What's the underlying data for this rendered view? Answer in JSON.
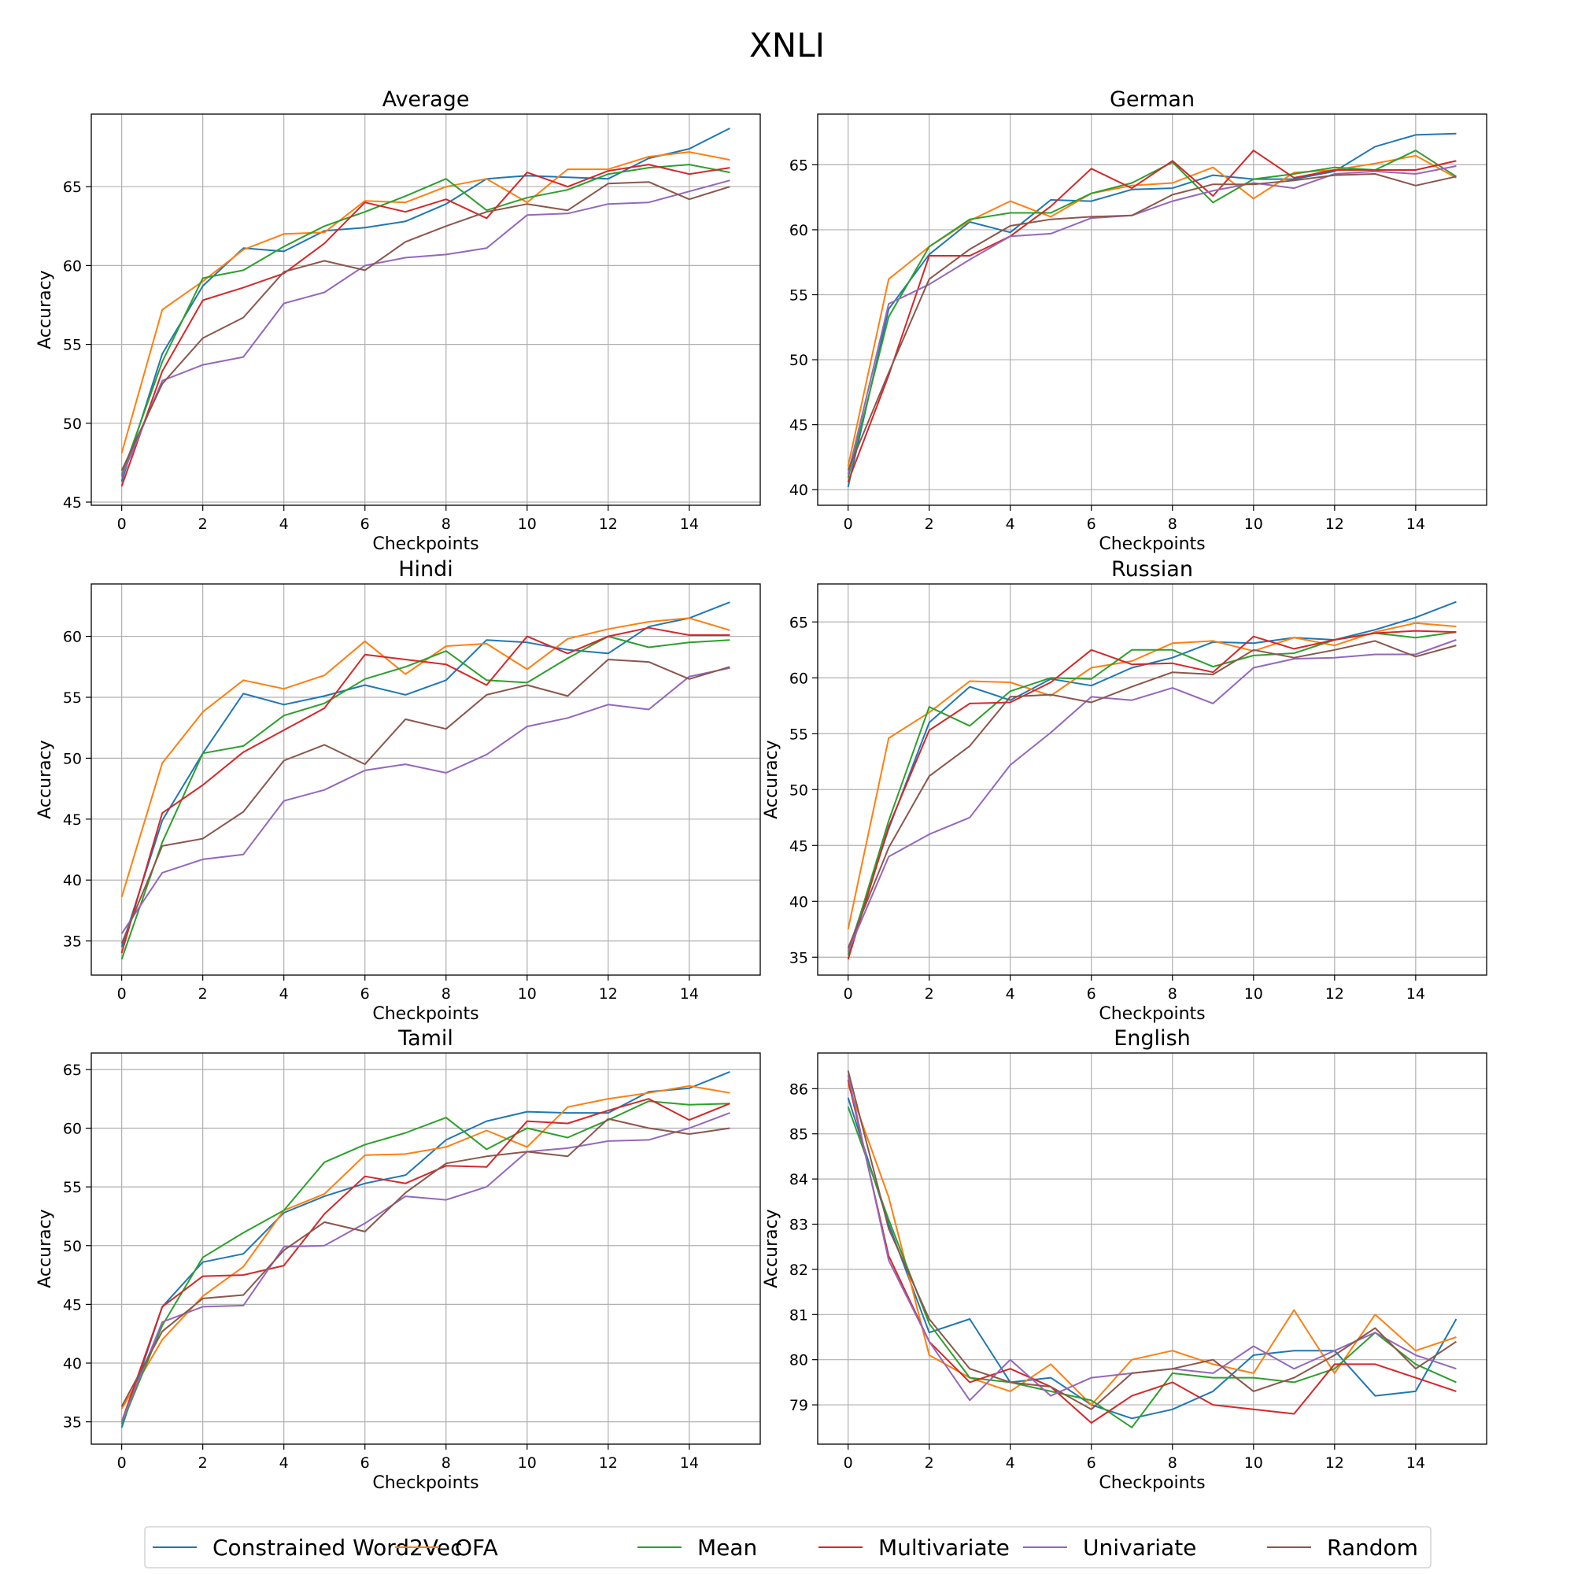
{
  "figure": {
    "title": "XNLI",
    "legend_position": "bottom-center"
  },
  "series_styles": [
    {
      "name": "Constrained Word2Vec",
      "color": "#1f77b4"
    },
    {
      "name": "OFA",
      "color": "#ff7f0e"
    },
    {
      "name": "Mean",
      "color": "#2ca02c"
    },
    {
      "name": "Multivariate",
      "color": "#d62728"
    },
    {
      "name": "Univariate",
      "color": "#9467bd"
    },
    {
      "name": "Random",
      "color": "#8c564b"
    }
  ],
  "chart_data": [
    {
      "type": "line",
      "title": "Average",
      "xlabel": "Checkpoints",
      "ylabel": "Accuracy",
      "xlim": [
        -0.75,
        15.75
      ],
      "ylim": [
        44.8,
        69.6
      ],
      "xticks": [
        0,
        2,
        4,
        6,
        8,
        10,
        12,
        14
      ],
      "yticks": [
        45,
        50,
        55,
        60,
        65
      ],
      "grid": true,
      "x": [
        0,
        1,
        2,
        3,
        4,
        5,
        6,
        7,
        8,
        9,
        10,
        11,
        12,
        13,
        14,
        15
      ],
      "series": [
        {
          "name": "Constrained Word2Vec",
          "values": [
            46.3,
            54.4,
            58.7,
            61.1,
            60.9,
            62.2,
            62.4,
            62.8,
            63.9,
            65.5,
            65.7,
            65.6,
            65.5,
            66.8,
            67.4,
            68.7
          ]
        },
        {
          "name": "OFA",
          "values": [
            48.1,
            57.2,
            59.0,
            61.0,
            62.0,
            62.1,
            64.1,
            64.0,
            65.0,
            65.5,
            64.0,
            66.1,
            66.1,
            66.9,
            67.2,
            66.7
          ]
        },
        {
          "name": "Mean",
          "values": [
            46.7,
            53.9,
            59.2,
            59.7,
            61.2,
            62.5,
            63.4,
            64.4,
            65.5,
            63.5,
            64.3,
            64.8,
            65.8,
            66.2,
            66.4,
            65.9
          ]
        },
        {
          "name": "Multivariate",
          "values": [
            46.0,
            53.3,
            57.8,
            58.6,
            59.5,
            61.4,
            64.0,
            63.4,
            64.2,
            63.0,
            65.9,
            65.0,
            66.0,
            66.4,
            65.8,
            66.2
          ]
        },
        {
          "name": "Univariate",
          "values": [
            46.6,
            52.7,
            53.7,
            54.2,
            57.6,
            58.3,
            60.0,
            60.5,
            60.7,
            61.1,
            63.2,
            63.3,
            63.9,
            64.0,
            64.7,
            65.4
          ]
        },
        {
          "name": "Random",
          "values": [
            47.0,
            52.5,
            55.4,
            56.7,
            59.6,
            60.3,
            59.7,
            61.5,
            62.5,
            63.4,
            63.9,
            63.5,
            65.2,
            65.3,
            64.2,
            65.0
          ]
        }
      ]
    },
    {
      "type": "line",
      "title": "German",
      "xlabel": "Checkpoints",
      "ylabel": "",
      "xlim": [
        -0.75,
        15.75
      ],
      "ylim": [
        38.8,
        68.9
      ],
      "xticks": [
        0,
        2,
        4,
        6,
        8,
        10,
        12,
        14
      ],
      "yticks": [
        40,
        45,
        50,
        55,
        60,
        65
      ],
      "grid": true,
      "x": [
        0,
        1,
        2,
        3,
        4,
        5,
        6,
        7,
        8,
        9,
        10,
        11,
        12,
        13,
        14,
        15
      ],
      "series": [
        {
          "name": "Constrained Word2Vec",
          "values": [
            40.2,
            53.9,
            58.1,
            60.6,
            59.8,
            62.3,
            62.2,
            63.1,
            63.2,
            64.2,
            63.9,
            63.9,
            64.5,
            66.4,
            67.3,
            67.4
          ]
        },
        {
          "name": "OFA",
          "values": [
            41.8,
            56.2,
            58.7,
            60.7,
            62.2,
            61.0,
            62.8,
            63.4,
            63.6,
            64.8,
            62.4,
            64.4,
            64.6,
            65.1,
            65.7,
            64.0
          ]
        },
        {
          "name": "Mean",
          "values": [
            40.9,
            53.3,
            58.7,
            60.8,
            61.3,
            61.3,
            62.8,
            63.6,
            65.2,
            62.1,
            63.9,
            64.3,
            64.8,
            64.6,
            66.1,
            64.1
          ]
        },
        {
          "name": "Multivariate",
          "values": [
            40.6,
            48.8,
            58.0,
            58.0,
            59.5,
            61.8,
            64.7,
            63.2,
            65.3,
            62.6,
            66.1,
            64.0,
            64.6,
            64.6,
            64.6,
            65.3
          ]
        },
        {
          "name": "Univariate",
          "values": [
            41.2,
            54.3,
            55.8,
            57.7,
            59.5,
            59.7,
            60.9,
            61.1,
            62.2,
            63.0,
            63.6,
            63.2,
            64.3,
            64.5,
            64.3,
            64.9
          ]
        },
        {
          "name": "Random",
          "values": [
            41.5,
            49.0,
            56.2,
            58.5,
            60.3,
            60.8,
            61.0,
            61.1,
            62.7,
            63.5,
            63.5,
            63.8,
            64.2,
            64.3,
            63.4,
            64.1
          ]
        }
      ]
    },
    {
      "type": "line",
      "title": "Hindi",
      "xlabel": "Checkpoints",
      "ylabel": "Accuracy",
      "xlim": [
        -0.75,
        15.75
      ],
      "ylim": [
        32.2,
        64.3
      ],
      "xticks": [
        0,
        2,
        4,
        6,
        8,
        10,
        12,
        14
      ],
      "yticks": [
        35,
        40,
        45,
        50,
        55,
        60
      ],
      "grid": true,
      "x": [
        0,
        1,
        2,
        3,
        4,
        5,
        6,
        7,
        8,
        9,
        10,
        11,
        12,
        13,
        14,
        15
      ],
      "series": [
        {
          "name": "Constrained Word2Vec",
          "values": [
            34.5,
            44.9,
            50.4,
            55.3,
            54.4,
            55.1,
            56.0,
            55.2,
            56.4,
            59.7,
            59.5,
            58.9,
            58.6,
            60.8,
            61.5,
            62.8
          ]
        },
        {
          "name": "OFA",
          "values": [
            38.6,
            49.6,
            53.8,
            56.4,
            55.7,
            56.8,
            59.6,
            56.9,
            59.2,
            59.4,
            57.3,
            59.8,
            60.6,
            61.2,
            61.5,
            60.5
          ]
        },
        {
          "name": "Mean",
          "values": [
            33.5,
            43.1,
            50.4,
            51.0,
            53.5,
            54.5,
            56.5,
            57.5,
            58.8,
            56.4,
            56.2,
            58.2,
            60.0,
            59.1,
            59.5,
            59.7
          ]
        },
        {
          "name": "Multivariate",
          "values": [
            34.0,
            45.5,
            47.8,
            50.5,
            52.3,
            54.1,
            58.5,
            58.1,
            57.7,
            56.0,
            60.0,
            58.6,
            60.0,
            60.7,
            60.1,
            60.1
          ]
        },
        {
          "name": "Univariate",
          "values": [
            35.6,
            40.6,
            41.7,
            42.1,
            46.5,
            47.4,
            49.0,
            49.5,
            48.8,
            50.3,
            52.6,
            53.3,
            54.4,
            54.0,
            56.7,
            57.4
          ]
        },
        {
          "name": "Random",
          "values": [
            34.8,
            42.8,
            43.4,
            45.6,
            49.8,
            51.1,
            49.5,
            53.2,
            52.4,
            55.2,
            56.0,
            55.1,
            58.1,
            57.9,
            56.5,
            57.5
          ]
        }
      ]
    },
    {
      "type": "line",
      "title": "Russian",
      "xlabel": "Checkpoints",
      "ylabel": "Accuracy",
      "xlim": [
        -0.75,
        15.75
      ],
      "ylim": [
        33.4,
        68.4
      ],
      "xticks": [
        0,
        2,
        4,
        6,
        8,
        10,
        12,
        14
      ],
      "yticks": [
        35,
        40,
        45,
        50,
        55,
        60,
        65
      ],
      "grid": true,
      "x": [
        0,
        1,
        2,
        3,
        4,
        5,
        6,
        7,
        8,
        9,
        10,
        11,
        12,
        13,
        14,
        15
      ],
      "series": [
        {
          "name": "Constrained Word2Vec",
          "values": [
            35.5,
            46.5,
            56.0,
            59.2,
            58.0,
            59.9,
            59.3,
            60.9,
            61.8,
            63.2,
            63.1,
            63.6,
            63.4,
            64.3,
            65.4,
            66.8
          ]
        },
        {
          "name": "OFA",
          "values": [
            37.5,
            54.6,
            56.9,
            59.7,
            59.6,
            58.4,
            60.9,
            61.5,
            63.1,
            63.3,
            62.4,
            63.6,
            62.9,
            64.1,
            64.9,
            64.6
          ]
        },
        {
          "name": "Mean",
          "values": [
            35.2,
            47.2,
            57.4,
            55.7,
            58.8,
            60.0,
            59.9,
            62.5,
            62.5,
            61.0,
            62.0,
            62.2,
            63.4,
            64.0,
            63.6,
            64.1
          ]
        },
        {
          "name": "Multivariate",
          "values": [
            34.8,
            46.7,
            55.3,
            57.7,
            57.8,
            59.6,
            62.5,
            61.2,
            61.3,
            60.5,
            63.7,
            62.6,
            63.4,
            64.0,
            64.2,
            64.1
          ]
        },
        {
          "name": "Univariate",
          "values": [
            35.5,
            44.0,
            46.0,
            47.5,
            52.2,
            55.1,
            58.3,
            58.0,
            59.1,
            57.7,
            60.9,
            61.7,
            61.8,
            62.1,
            62.1,
            63.4
          ]
        },
        {
          "name": "Random",
          "values": [
            35.8,
            44.8,
            51.2,
            53.9,
            58.3,
            58.5,
            57.8,
            59.2,
            60.5,
            60.3,
            62.5,
            61.8,
            62.5,
            63.3,
            61.9,
            62.9
          ]
        }
      ]
    },
    {
      "type": "line",
      "title": "Tamil",
      "xlabel": "Checkpoints",
      "ylabel": "Accuracy",
      "xlim": [
        -0.75,
        15.75
      ],
      "ylim": [
        33.1,
        66.4
      ],
      "xticks": [
        0,
        2,
        4,
        6,
        8,
        10,
        12,
        14
      ],
      "yticks": [
        35,
        40,
        45,
        50,
        55,
        60,
        65
      ],
      "grid": true,
      "x": [
        0,
        1,
        2,
        3,
        4,
        5,
        6,
        7,
        8,
        9,
        10,
        11,
        12,
        13,
        14,
        15
      ],
      "series": [
        {
          "name": "Constrained Word2Vec",
          "values": [
            34.5,
            44.8,
            48.6,
            49.3,
            52.8,
            54.2,
            55.3,
            56.0,
            59.0,
            60.6,
            61.4,
            61.3,
            61.3,
            63.1,
            63.4,
            64.8
          ]
        },
        {
          "name": "OFA",
          "values": [
            36.1,
            42.0,
            45.7,
            48.2,
            53.0,
            54.4,
            57.7,
            57.8,
            58.4,
            59.8,
            58.4,
            61.8,
            62.5,
            63.0,
            63.6,
            63.0
          ]
        },
        {
          "name": "Mean",
          "values": [
            34.8,
            43.2,
            49.0,
            51.1,
            53.0,
            57.1,
            58.6,
            59.6,
            60.9,
            58.2,
            60.0,
            59.2,
            60.7,
            62.3,
            62.0,
            62.1
          ]
        },
        {
          "name": "Multivariate",
          "values": [
            35.0,
            44.8,
            47.4,
            47.5,
            48.3,
            52.7,
            55.9,
            55.3,
            56.8,
            56.7,
            60.6,
            60.4,
            61.5,
            62.5,
            60.7,
            62.1
          ]
        },
        {
          "name": "Univariate",
          "values": [
            35.0,
            43.5,
            44.8,
            44.9,
            49.9,
            50.0,
            51.9,
            54.2,
            53.9,
            55.0,
            58.0,
            58.3,
            58.9,
            59.0,
            60.0,
            61.3
          ]
        },
        {
          "name": "Random",
          "values": [
            36.3,
            42.7,
            45.5,
            45.8,
            49.6,
            52.0,
            51.2,
            54.5,
            57.0,
            57.6,
            58.0,
            57.6,
            60.8,
            60.0,
            59.5,
            60.0
          ]
        }
      ]
    },
    {
      "type": "line",
      "title": "English",
      "xlabel": "Checkpoints",
      "ylabel": "Accuracy",
      "xlim": [
        -0.75,
        15.75
      ],
      "ylim": [
        78.13,
        86.79
      ],
      "xticks": [
        0,
        2,
        4,
        6,
        8,
        10,
        12,
        14
      ],
      "yticks": [
        79,
        80,
        81,
        82,
        83,
        84,
        85,
        86
      ],
      "grid": true,
      "x": [
        0,
        1,
        2,
        3,
        4,
        5,
        6,
        7,
        8,
        9,
        10,
        11,
        12,
        13,
        14,
        15
      ],
      "series": [
        {
          "name": "Constrained Word2Vec",
          "values": [
            85.8,
            83.0,
            80.6,
            80.9,
            79.5,
            79.6,
            79.0,
            78.7,
            78.9,
            79.3,
            80.1,
            80.2,
            80.2,
            79.2,
            79.3,
            80.9
          ]
        },
        {
          "name": "OFA",
          "values": [
            86.1,
            83.6,
            80.1,
            79.6,
            79.3,
            79.9,
            79.0,
            80.0,
            80.2,
            79.9,
            79.7,
            81.1,
            79.7,
            81.0,
            80.2,
            80.5
          ]
        },
        {
          "name": "Mean",
          "values": [
            85.6,
            83.1,
            80.8,
            79.6,
            79.5,
            79.3,
            79.1,
            78.5,
            79.7,
            79.6,
            79.6,
            79.5,
            79.8,
            80.6,
            79.9,
            79.5
          ]
        },
        {
          "name": "Multivariate",
          "values": [
            86.2,
            82.3,
            80.4,
            79.5,
            79.8,
            79.4,
            78.6,
            79.2,
            79.5,
            79.0,
            78.9,
            78.8,
            79.9,
            79.9,
            79.6,
            79.3
          ]
        },
        {
          "name": "Univariate",
          "values": [
            86.3,
            82.2,
            80.4,
            79.1,
            80.0,
            79.2,
            79.6,
            79.7,
            79.8,
            79.7,
            80.3,
            79.8,
            80.2,
            80.6,
            80.1,
            79.8
          ]
        },
        {
          "name": "Random",
          "values": [
            86.4,
            82.9,
            80.9,
            79.8,
            79.5,
            79.4,
            78.9,
            79.7,
            79.8,
            80.0,
            79.3,
            79.6,
            80.1,
            80.7,
            79.8,
            80.4
          ]
        }
      ]
    }
  ]
}
